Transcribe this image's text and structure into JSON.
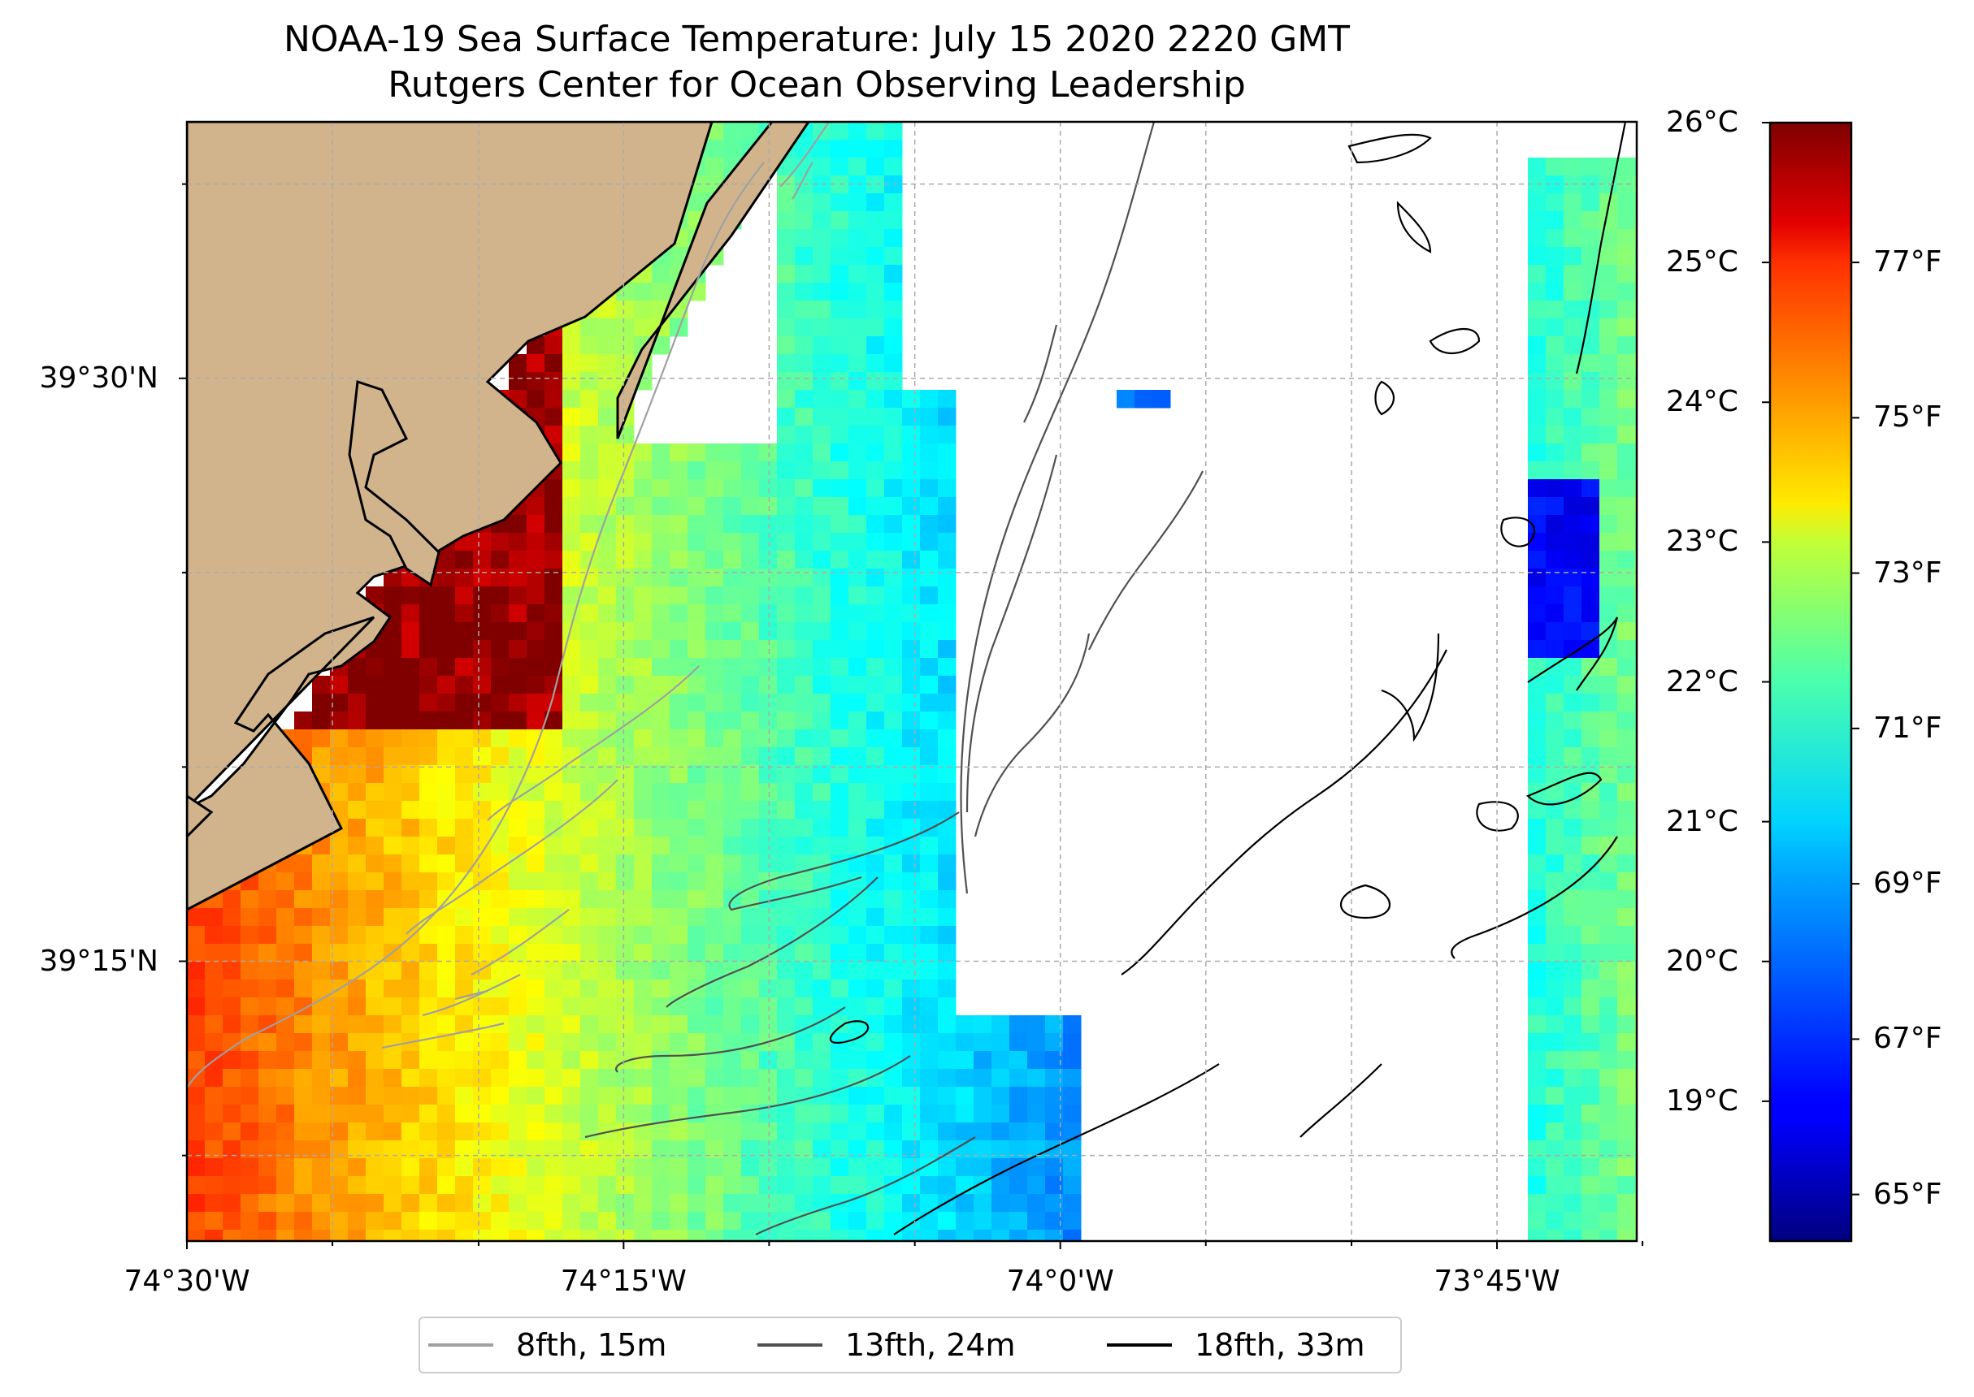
{
  "title": "NOAA-19 Sea Surface Temperature: July 15 2020 2220 GMT",
  "subtitle": "Rutgers Center for Ocean Observing Leadership",
  "map": {
    "lon_range": [
      -74.5,
      -73.67
    ],
    "lat_range": [
      39.13,
      39.61
    ],
    "grid": true,
    "land_color": "#d2b48c",
    "no_data_color": "#ffffff",
    "colormap": "jet"
  },
  "lat_ticks": [
    {
      "label": "39°30'N",
      "value": 39.5
    },
    {
      "label": "39°15'N",
      "value": 39.25
    }
  ],
  "lon_ticks": [
    {
      "label": "74°30'W",
      "value": -74.5
    },
    {
      "label": "74°15'W",
      "value": -74.25
    },
    {
      "label": "74°0'W",
      "value": -74.0
    },
    {
      "label": "73°45'W",
      "value": -73.75
    }
  ],
  "colorbar": {
    "range_c": [
      18.0,
      26.0
    ],
    "celsius_ticks": [
      "19°C",
      "20°C",
      "21°C",
      "22°C",
      "23°C",
      "24°C",
      "25°C",
      "26°C"
    ],
    "celsius_values": [
      19,
      20,
      21,
      22,
      23,
      24,
      25,
      26
    ],
    "fahrenheit_ticks": [
      "65°F",
      "67°F",
      "69°F",
      "71°F",
      "73°F",
      "75°F",
      "77°F"
    ],
    "fahrenheit_values": [
      65,
      67,
      69,
      71,
      73,
      75,
      77
    ]
  },
  "legend": {
    "items": [
      {
        "label": "8fth, 15m",
        "color": "#a0a0a0"
      },
      {
        "label": "13fth, 24m",
        "color": "#505050"
      },
      {
        "label": "18fth, 33m",
        "color": "#000000"
      }
    ]
  }
}
